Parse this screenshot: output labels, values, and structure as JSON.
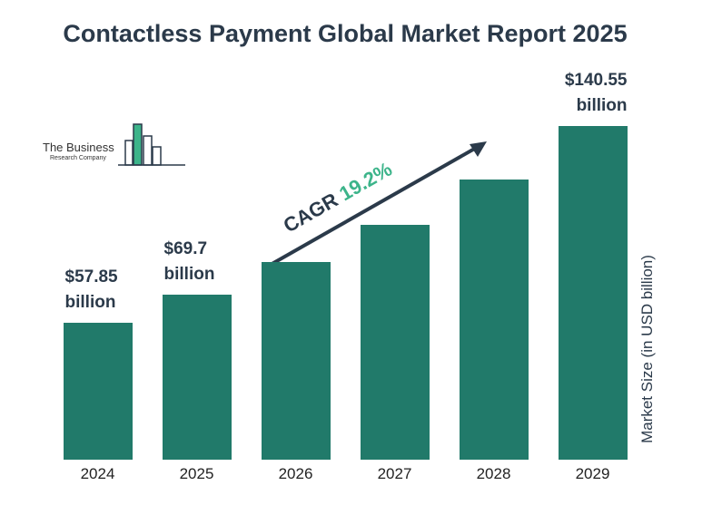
{
  "chart_data": {
    "type": "bar",
    "title": "Contactless Payment Global Market Report 2025",
    "y_axis_label": "Market Size (in USD billion)",
    "annotation": {
      "label": "CAGR",
      "value": "19.2%"
    },
    "logo": {
      "line1": "The Business",
      "line2": "Research Company"
    },
    "categories": [
      "2024",
      "2025",
      "2026",
      "2027",
      "2028",
      "2029"
    ],
    "values": [
      57.85,
      69.7,
      83.1,
      99.0,
      118.0,
      140.55
    ],
    "value_labels": [
      "$57.85 billion",
      "$69.7 billion",
      null,
      null,
      null,
      "$140.55 billion"
    ],
    "color": "#217a6a"
  }
}
